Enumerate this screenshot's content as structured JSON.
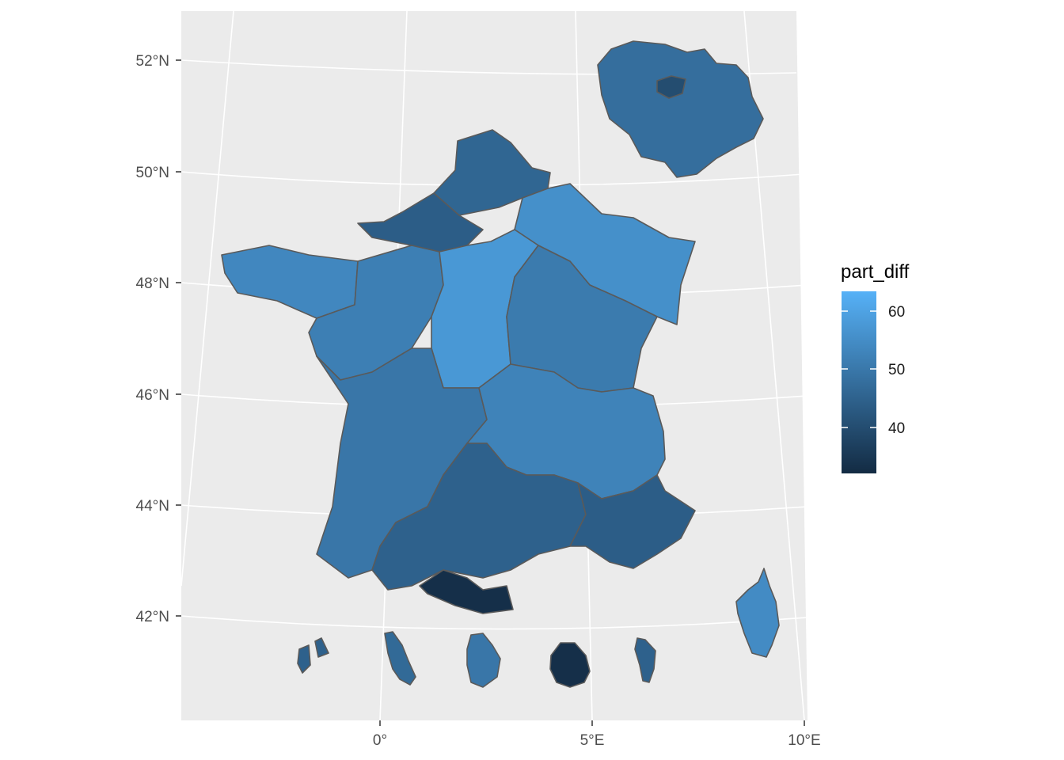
{
  "map": {
    "x_axis": {
      "ticks": [
        "0°",
        "5°E",
        "10°E"
      ]
    },
    "y_axis": {
      "ticks": [
        "52°N",
        "50°N",
        "48°N",
        "46°N",
        "44°N",
        "42°N"
      ]
    },
    "legend": {
      "title": "part_diff",
      "ticks": [
        "60",
        "50",
        "40"
      ],
      "tick_values": [
        60,
        50,
        40
      ],
      "range": [
        32,
        64
      ],
      "color_low": "#132B43",
      "color_high": "#56B1F7"
    },
    "colors": {
      "panel_background": "#EBEBEB",
      "grid": "#FFFFFF",
      "border": "#5A5A5A"
    },
    "regions": [
      {
        "name": "ile-de-france-inset",
        "value": 48
      },
      {
        "name": "paris",
        "value": 40
      },
      {
        "name": "nord-pas-de-calais",
        "value": 46
      },
      {
        "name": "normandie",
        "value": 44
      },
      {
        "name": "bretagne",
        "value": 54
      },
      {
        "name": "pays-de-la-loire",
        "value": 52
      },
      {
        "name": "centre",
        "value": 58
      },
      {
        "name": "grand-est",
        "value": 56
      },
      {
        "name": "bourgogne-franche-comte",
        "value": 51
      },
      {
        "name": "nouvelle-aquitaine",
        "value": 50
      },
      {
        "name": "auvergne-rhone-alpes",
        "value": 53
      },
      {
        "name": "occitanie",
        "value": 45
      },
      {
        "name": "paca",
        "value": 44
      },
      {
        "name": "pyrenees-orientales",
        "value": 33
      },
      {
        "name": "corse",
        "value": 55
      },
      {
        "name": "guadeloupe",
        "value": 45
      },
      {
        "name": "martinique",
        "value": 47
      },
      {
        "name": "guyane",
        "value": 50
      },
      {
        "name": "la-reunion",
        "value": 33
      },
      {
        "name": "mayotte",
        "value": 45
      }
    ]
  }
}
